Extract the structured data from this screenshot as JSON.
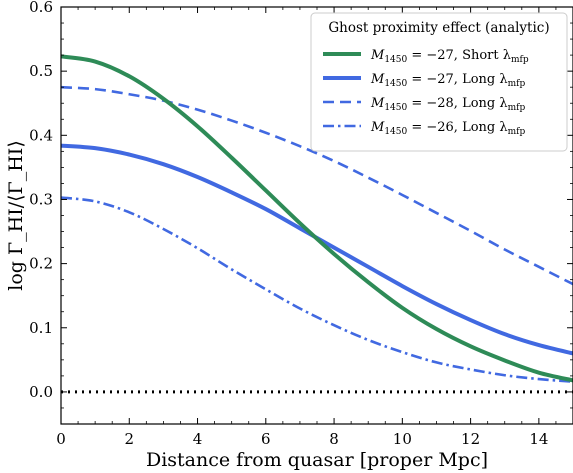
{
  "chart_data": {
    "type": "line",
    "title": "",
    "xlabel": "Distance from quasar [proper Mpc]",
    "ylabel": "log Γ_HI/⟨Γ_HI⟩",
    "xlim": [
      0,
      15
    ],
    "ylim": [
      -0.05,
      0.6
    ],
    "xticks": [
      0,
      2,
      4,
      6,
      8,
      10,
      12,
      14
    ],
    "yticks": [
      0.0,
      0.1,
      0.2,
      0.3,
      0.4,
      0.5,
      0.6
    ],
    "xtick_labels": [
      "0",
      "2",
      "4",
      "6",
      "8",
      "10",
      "12",
      "14"
    ],
    "ytick_labels": [
      "0.0",
      "0.1",
      "0.2",
      "0.3",
      "0.4",
      "0.5",
      "0.6"
    ],
    "grid": false,
    "legend": {
      "title": "Ghost proximity effect (analytic)",
      "placement": "top-right"
    },
    "reference_line": {
      "y": 0.0,
      "style": "dotted",
      "color": "#000000"
    },
    "series": [
      {
        "name": "M1450 = −27, Short λmfp",
        "label_parts": {
          "prefix": "M",
          "sub1": "1450",
          "value": " = −27, Short λ",
          "sub2": "mfp"
        },
        "color": "#2e8b57",
        "style": "solid",
        "x": [
          0,
          1,
          2,
          3,
          4,
          5,
          6,
          7,
          8,
          9,
          10,
          11,
          12,
          13,
          14,
          15
        ],
        "y": [
          0.523,
          0.515,
          0.492,
          0.457,
          0.414,
          0.365,
          0.314,
          0.263,
          0.215,
          0.171,
          0.131,
          0.098,
          0.071,
          0.049,
          0.03,
          0.018
        ]
      },
      {
        "name": "M1450 = −27, Long λmfp",
        "label_parts": {
          "prefix": "M",
          "sub1": "1450",
          "value": " = −27, Long λ",
          "sub2": "mfp"
        },
        "color": "#4169e1",
        "style": "solid",
        "x": [
          0,
          1,
          2,
          3,
          4,
          5,
          6,
          7,
          8,
          9,
          10,
          11,
          12,
          13,
          14,
          15
        ],
        "y": [
          0.384,
          0.38,
          0.37,
          0.355,
          0.335,
          0.311,
          0.285,
          0.255,
          0.225,
          0.195,
          0.165,
          0.137,
          0.112,
          0.09,
          0.073,
          0.06
        ]
      },
      {
        "name": "M1450 = −28, Long λmfp",
        "label_parts": {
          "prefix": "M",
          "sub1": "1450",
          "value": " = −28, Long λ",
          "sub2": "mfp"
        },
        "color": "#4169e1",
        "style": "dashed",
        "x": [
          0,
          1,
          2,
          3,
          4,
          5,
          6,
          7,
          8,
          9,
          10,
          11,
          12,
          13,
          14,
          15
        ],
        "y": [
          0.475,
          0.472,
          0.464,
          0.454,
          0.44,
          0.423,
          0.404,
          0.383,
          0.36,
          0.334,
          0.307,
          0.279,
          0.251,
          0.222,
          0.195,
          0.168
        ]
      },
      {
        "name": "M1450 = −26, Long λmfp",
        "label_parts": {
          "prefix": "M",
          "sub1": "1450",
          "value": " = −26, Long λ",
          "sub2": "mfp"
        },
        "color": "#4169e1",
        "style": "dashdot",
        "x": [
          0,
          1,
          2,
          3,
          4,
          5,
          6,
          7,
          8,
          9,
          10,
          11,
          12,
          13,
          14,
          15
        ],
        "y": [
          0.303,
          0.297,
          0.28,
          0.254,
          0.224,
          0.191,
          0.16,
          0.13,
          0.104,
          0.081,
          0.062,
          0.046,
          0.035,
          0.026,
          0.02,
          0.016
        ]
      }
    ]
  }
}
